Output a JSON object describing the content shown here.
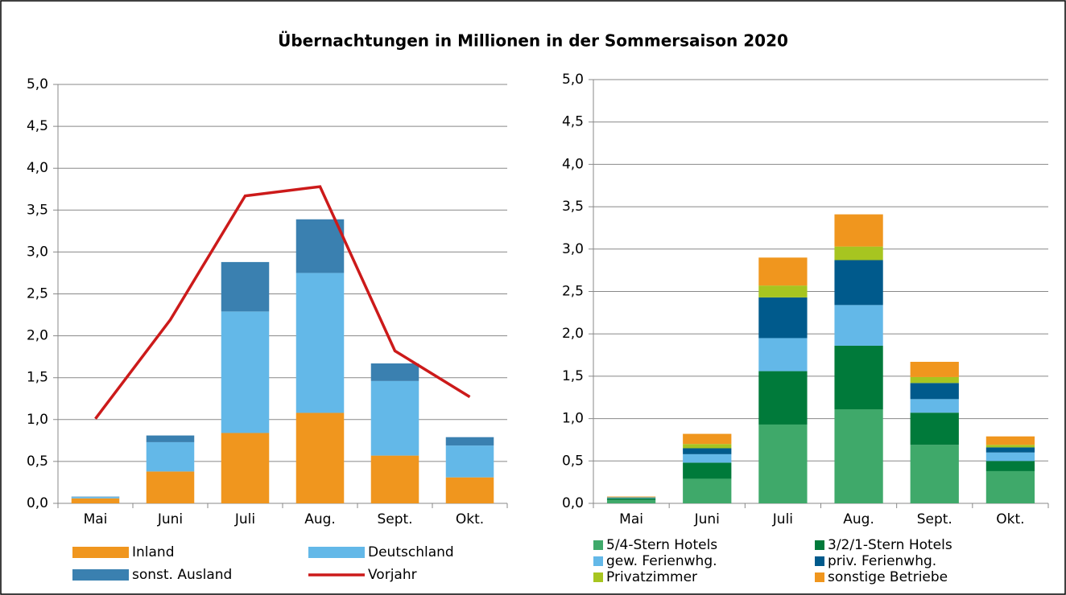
{
  "title": "Übernachtungen in Millionen in der Sommersaison 2020",
  "chart_data": [
    {
      "type": "bar",
      "stacked": true,
      "grid": true,
      "categories": [
        "Mai",
        "Juni",
        "Juli",
        "Aug.",
        "Sept.",
        "Okt."
      ],
      "ylim": [
        0,
        5
      ],
      "yticks": [
        {
          "value": 0,
          "label": "0,0"
        },
        {
          "value": 0.5,
          "label": "0,5"
        },
        {
          "value": 1,
          "label": "1,0"
        },
        {
          "value": 1.5,
          "label": "1,5"
        },
        {
          "value": 2,
          "label": "2,0"
        },
        {
          "value": 2.5,
          "label": "2,5"
        },
        {
          "value": 3,
          "label": "3,0"
        },
        {
          "value": 3.5,
          "label": "3,5"
        },
        {
          "value": 4,
          "label": "4,0"
        },
        {
          "value": 4.5,
          "label": "4,5"
        },
        {
          "value": 5,
          "label": "5,0"
        }
      ],
      "series": [
        {
          "name": "Inland",
          "color": "#f0961e",
          "values": [
            0.06,
            0.38,
            0.84,
            1.08,
            0.57,
            0.31
          ]
        },
        {
          "name": "Deutschland",
          "color": "#63b8e8",
          "values": [
            0.015,
            0.35,
            1.45,
            1.67,
            0.89,
            0.38
          ]
        },
        {
          "name": "sonst. Ausland",
          "color": "#3a80b0",
          "values": [
            0.005,
            0.08,
            0.59,
            0.64,
            0.21,
            0.1
          ]
        },
        {
          "name": "Vorjahr",
          "color": "#cc1a1a",
          "type": "line",
          "values": [
            1.01,
            2.19,
            3.67,
            3.78,
            1.82,
            1.27
          ]
        }
      ]
    },
    {
      "type": "bar",
      "stacked": true,
      "grid": true,
      "categories": [
        "Mai",
        "Juni",
        "Juli",
        "Aug.",
        "Sept.",
        "Okt."
      ],
      "ylim": [
        0,
        5
      ],
      "yticks": [
        {
          "value": 0,
          "label": "0,0"
        },
        {
          "value": 0.5,
          "label": "0,5"
        },
        {
          "value": 1,
          "label": "1,0"
        },
        {
          "value": 1.5,
          "label": "1,5"
        },
        {
          "value": 2,
          "label": "2,0"
        },
        {
          "value": 2.5,
          "label": "2,5"
        },
        {
          "value": 3,
          "label": "3,0"
        },
        {
          "value": 3.5,
          "label": "3,5"
        },
        {
          "value": 4,
          "label": "4,0"
        },
        {
          "value": 4.5,
          "label": "4,5"
        },
        {
          "value": 5,
          "label": "5,0"
        }
      ],
      "series": [
        {
          "name": "5/4-Stern Hotels",
          "color": "#3fa96a",
          "values": [
            0.04,
            0.29,
            0.93,
            1.11,
            0.69,
            0.38
          ]
        },
        {
          "name": "3/2/1-Stern Hotels",
          "color": "#007a3a",
          "values": [
            0.02,
            0.19,
            0.63,
            0.75,
            0.38,
            0.12
          ]
        },
        {
          "name": "gew. Ferienwhg.",
          "color": "#63b8e8",
          "values": [
            0.005,
            0.1,
            0.39,
            0.48,
            0.16,
            0.1
          ]
        },
        {
          "name": "priv. Ferienwhg.",
          "color": "#005a8c",
          "values": [
            0.005,
            0.07,
            0.48,
            0.53,
            0.19,
            0.06
          ]
        },
        {
          "name": "Privatzimmer",
          "color": "#a7c520",
          "values": [
            0.003,
            0.05,
            0.14,
            0.16,
            0.07,
            0.03
          ]
        },
        {
          "name": "sonstige Betriebe",
          "color": "#f0961e",
          "values": [
            0.007,
            0.12,
            0.33,
            0.38,
            0.18,
            0.1
          ]
        }
      ]
    }
  ]
}
